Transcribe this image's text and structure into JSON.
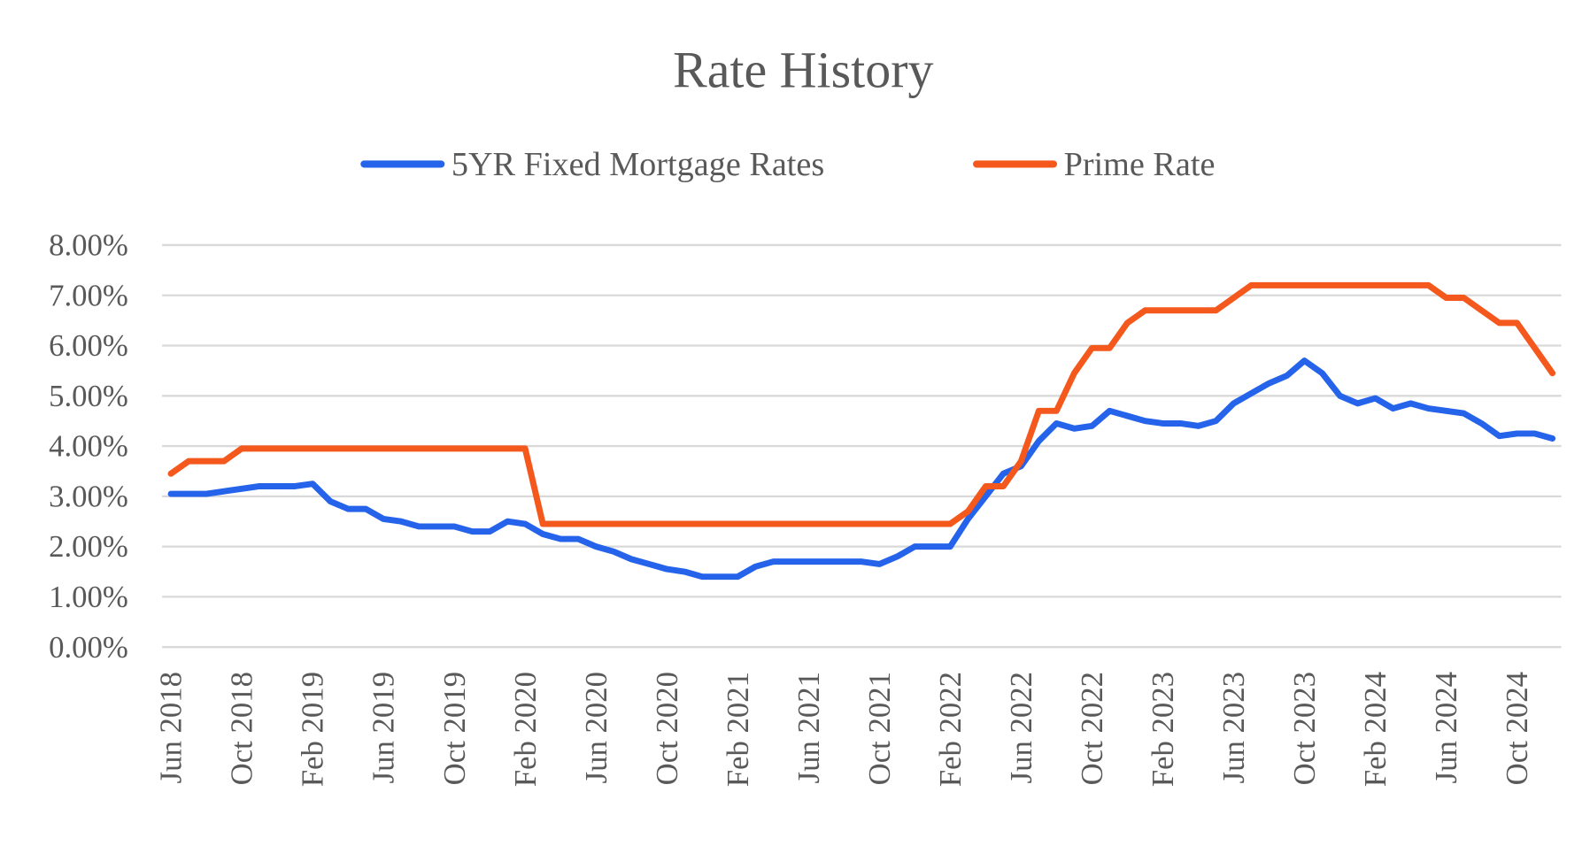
{
  "chart_data": {
    "type": "line",
    "title": "Rate History",
    "categories": [
      "Jun 2018",
      null,
      null,
      null,
      "Oct 2018",
      null,
      null,
      null,
      "Feb 2019",
      null,
      null,
      null,
      "Jun 2019",
      null,
      null,
      null,
      "Oct 2019",
      null,
      null,
      null,
      "Feb 2020",
      null,
      null,
      null,
      "Jun 2020",
      null,
      null,
      null,
      "Oct 2020",
      null,
      null,
      null,
      "Feb 2021",
      null,
      null,
      null,
      "Jun 2021",
      null,
      null,
      null,
      "Oct 2021",
      null,
      null,
      null,
      "Feb 2022",
      null,
      null,
      null,
      "Jun 2022",
      null,
      null,
      null,
      "Oct 2022",
      null,
      null,
      null,
      "Feb 2023",
      null,
      null,
      null,
      "Jun 2023",
      null,
      null,
      null,
      "Oct 2023",
      null,
      null,
      null,
      "Feb 2024",
      null,
      null,
      null,
      "Jun 2024",
      null,
      null,
      null,
      "Oct 2024",
      null,
      null
    ],
    "series": [
      {
        "name": "5YR Fixed Mortgage Rates",
        "color": "#2563eb",
        "values": [
          3.05,
          3.05,
          3.05,
          3.1,
          3.15,
          3.2,
          3.2,
          3.2,
          3.25,
          2.9,
          2.75,
          2.75,
          2.55,
          2.5,
          2.4,
          2.4,
          2.4,
          2.3,
          2.3,
          2.5,
          2.45,
          2.25,
          2.15,
          2.15,
          2.0,
          1.9,
          1.75,
          1.65,
          1.55,
          1.5,
          1.4,
          1.4,
          1.4,
          1.6,
          1.7,
          1.7,
          1.7,
          1.7,
          1.7,
          1.7,
          1.65,
          1.8,
          2.0,
          2.0,
          2.0,
          2.55,
          3.0,
          3.45,
          3.6,
          4.1,
          4.45,
          4.35,
          4.4,
          4.7,
          4.6,
          4.5,
          4.45,
          4.45,
          4.4,
          4.5,
          4.85,
          5.05,
          5.25,
          5.4,
          5.7,
          5.45,
          5.0,
          4.85,
          4.95,
          4.75,
          4.85,
          4.75,
          4.7,
          4.65,
          4.45,
          4.2,
          4.25,
          4.25,
          4.15
        ]
      },
      {
        "name": "Prime Rate",
        "color": "#f4581c",
        "values": [
          3.45,
          3.7,
          3.7,
          3.7,
          3.95,
          3.95,
          3.95,
          3.95,
          3.95,
          3.95,
          3.95,
          3.95,
          3.95,
          3.95,
          3.95,
          3.95,
          3.95,
          3.95,
          3.95,
          3.95,
          3.95,
          2.45,
          2.45,
          2.45,
          2.45,
          2.45,
          2.45,
          2.45,
          2.45,
          2.45,
          2.45,
          2.45,
          2.45,
          2.45,
          2.45,
          2.45,
          2.45,
          2.45,
          2.45,
          2.45,
          2.45,
          2.45,
          2.45,
          2.45,
          2.45,
          2.7,
          3.2,
          3.2,
          3.7,
          4.7,
          4.7,
          5.45,
          5.95,
          5.95,
          6.45,
          6.7,
          6.7,
          6.7,
          6.7,
          6.7,
          6.95,
          7.2,
          7.2,
          7.2,
          7.2,
          7.2,
          7.2,
          7.2,
          7.2,
          7.2,
          7.2,
          7.2,
          6.95,
          6.95,
          6.7,
          6.45,
          6.45,
          5.95,
          5.45
        ]
      }
    ],
    "ylim": [
      0,
      8
    ],
    "yticks": [
      {
        "value": 0,
        "label": "0.00%"
      },
      {
        "value": 1,
        "label": "1.00%"
      },
      {
        "value": 2,
        "label": "2.00%"
      },
      {
        "value": 3,
        "label": "3.00%"
      },
      {
        "value": 4,
        "label": "4.00%"
      },
      {
        "value": 5,
        "label": "5.00%"
      },
      {
        "value": 6,
        "label": "6.00%"
      },
      {
        "value": 7,
        "label": "7.00%"
      },
      {
        "value": 8,
        "label": "8.00%"
      }
    ],
    "grid": true,
    "legend": "top"
  }
}
